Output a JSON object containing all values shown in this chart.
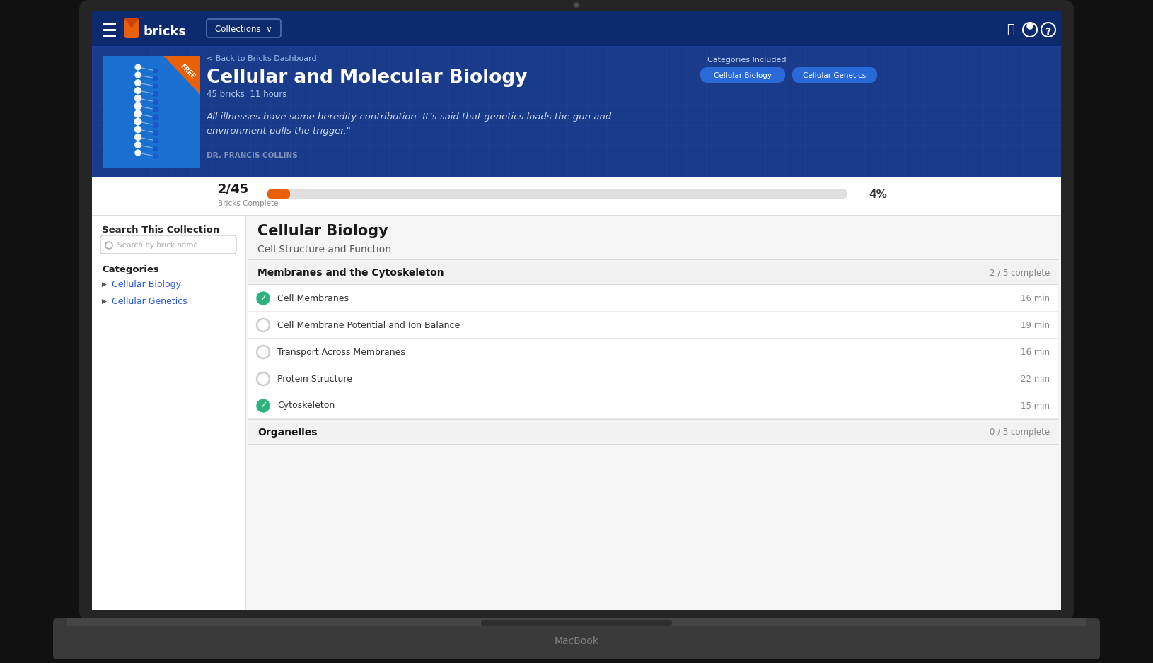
{
  "bg_color": "#1a1a1a",
  "nav_bg": "#0d2a6e",
  "hero_bg": "#1a3a8a",
  "white": "#ffffff",
  "orange": "#e8600a",
  "progress_orange": "#e8600a",
  "green_check": "#2db37b",
  "title": "Cellular and Molecular Biology",
  "subtitle_bricks": "45 bricks",
  "subtitle_hours": "11 hours",
  "back_link": "< Back to Bricks Dashboard",
  "quote_line1": "All illnesses have some heredity contribution. It’s said that genetics loads the gun and",
  "quote_line2": "environment pulls the trigger.\"",
  "author": "DR. FRANCIS COLLINS",
  "progress_text": "2/45",
  "progress_label": "Bricks Complete",
  "progress_pct": "4%",
  "progress_fill": 0.04,
  "section_title": "Cellular Biology",
  "subsection_title": "Cell Structure and Function",
  "group_title": "Membranes and the Cytoskeleton",
  "group_complete": "2 / 5 complete",
  "items": [
    {
      "name": "Cell Membranes",
      "time": "16 min",
      "done": true
    },
    {
      "name": "Cell Membrane Potential and Ion Balance",
      "time": "19 min",
      "done": false
    },
    {
      "name": "Transport Across Membranes",
      "time": "16 min",
      "done": false
    },
    {
      "name": "Protein Structure",
      "time": "22 min",
      "done": false
    },
    {
      "name": "Cytoskeleton",
      "time": "15 min",
      "done": true
    }
  ],
  "group2_title": "Organelles",
  "group2_complete": "0 / 3 complete",
  "cat1": "Cellular Biology",
  "cat2": "Cellular Genetics",
  "categories_label": "Categories Included",
  "sidebar_search_label": "Search This Collection",
  "sidebar_categories_label": "Categories",
  "sidebar_cat1": "Cellular Biology",
  "sidebar_cat2": "Cellular Genetics",
  "macbook_label": "MacBook"
}
